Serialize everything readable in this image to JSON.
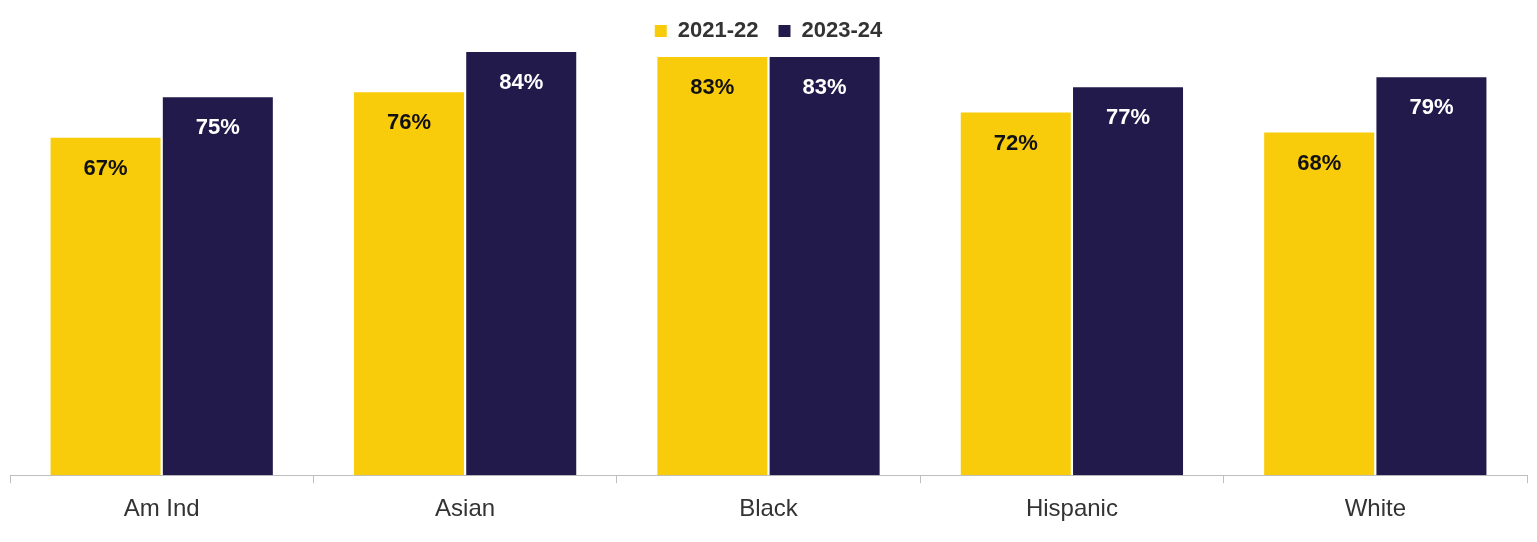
{
  "chart_data": {
    "type": "bar",
    "categories": [
      "Am Ind",
      "Asian",
      "Black",
      "Hispanic",
      "White"
    ],
    "series": [
      {
        "name": "2021-22",
        "color": "#f9cc0b",
        "values": [
          67,
          76,
          83,
          72,
          68
        ],
        "value_labels": [
          "67%",
          "76%",
          "83%",
          "72%",
          "68%"
        ]
      },
      {
        "name": "2023-24",
        "color": "#211a4b",
        "values": [
          75,
          84,
          83,
          77,
          79
        ],
        "value_labels": [
          "75%",
          "84%",
          "83%",
          "77%",
          "79%"
        ]
      }
    ],
    "ylim": [
      0,
      84
    ],
    "grid": false,
    "legend": "top"
  }
}
